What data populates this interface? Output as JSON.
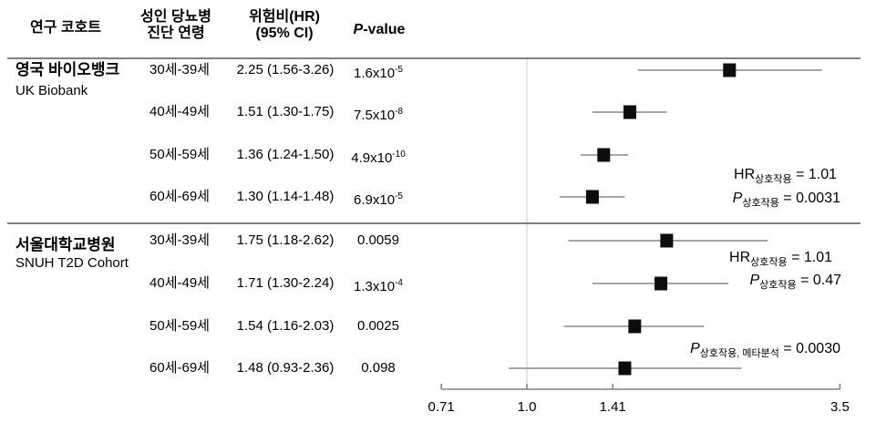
{
  "table": {
    "headers": {
      "cohort": "연구 코호트",
      "age_line1": "성인 당뇨병",
      "age_line2": "진단 연령",
      "hr_line1": "위험비(HR)",
      "hr_line2": "(95% CI)",
      "pvalue_italic": "P",
      "pvalue_rest": "-value"
    },
    "cohorts": [
      {
        "name_kr": "영국 바이오뱅크",
        "name_en": "UK Biobank"
      },
      {
        "name_kr": "서울대학교병원",
        "name_en": "SNUH T2D Cohort"
      }
    ],
    "rows": [
      {
        "age": "30세-39세",
        "hr_ci": "2.25 (1.56-3.26)",
        "p_base": "1.6x10",
        "p_sup": "-5"
      },
      {
        "age": "40세-49세",
        "hr_ci": "1.51 (1.30-1.75)",
        "p_base": "7.5x10",
        "p_sup": "-8"
      },
      {
        "age": "50세-59세",
        "hr_ci": "1.36 (1.24-1.50)",
        "p_base": "4.9x10",
        "p_sup": "-10"
      },
      {
        "age": "60세-69세",
        "hr_ci": "1.30 (1.14-1.48)",
        "p_base": "6.9x10",
        "p_sup": "-5"
      },
      {
        "age": "30세-39세",
        "hr_ci": "1.75 (1.18-2.62)",
        "p_base": "0.0059",
        "p_sup": ""
      },
      {
        "age": "40세-49세",
        "hr_ci": "1.71 (1.30-2.24)",
        "p_base": "1.3x10",
        "p_sup": "-4"
      },
      {
        "age": "50세-59세",
        "hr_ci": "1.54 (1.16-2.03)",
        "p_base": "0.0025",
        "p_sup": ""
      },
      {
        "age": "60세-69세",
        "hr_ci": "1.48 (0.93-2.36)",
        "p_base": "0.098",
        "p_sup": ""
      }
    ]
  },
  "chart_data": {
    "type": "forest",
    "title": "",
    "xscale": "log",
    "xlim": [
      0.71,
      3.5
    ],
    "xticks": [
      0.71,
      1.0,
      1.41,
      3.5
    ],
    "xtick_labels": [
      "0.71",
      "1.0",
      "1.41",
      "3.5"
    ],
    "reference_line": 1.0,
    "grid": false,
    "legend_position": "none",
    "series": [
      {
        "name": "UK Biobank",
        "points": [
          {
            "label": "30세-39세",
            "hr": 2.25,
            "ci_low": 1.56,
            "ci_high": 3.26
          },
          {
            "label": "40세-49세",
            "hr": 1.51,
            "ci_low": 1.3,
            "ci_high": 1.75
          },
          {
            "label": "50세-59세",
            "hr": 1.36,
            "ci_low": 1.24,
            "ci_high": 1.5
          },
          {
            "label": "60세-69세",
            "hr": 1.3,
            "ci_low": 1.14,
            "ci_high": 1.48
          }
        ]
      },
      {
        "name": "SNUH T2D Cohort",
        "points": [
          {
            "label": "30세-39세",
            "hr": 1.75,
            "ci_low": 1.18,
            "ci_high": 2.62
          },
          {
            "label": "40세-49세",
            "hr": 1.71,
            "ci_low": 1.3,
            "ci_high": 2.24
          },
          {
            "label": "50세-59세",
            "hr": 1.54,
            "ci_low": 1.16,
            "ci_high": 2.03
          },
          {
            "label": "60세-69세",
            "hr": 1.48,
            "ci_low": 0.93,
            "ci_high": 2.36
          }
        ]
      }
    ]
  },
  "annotations": [
    {
      "prefix": "HR",
      "italic_prefix": false,
      "subscript": "상호작용",
      "value": " = 1.01"
    },
    {
      "prefix": "P",
      "italic_prefix": true,
      "subscript": "상호작용",
      "value": " = 0.0031"
    },
    {
      "prefix": "HR",
      "italic_prefix": false,
      "subscript": "상호작용",
      "value": " = 1.01"
    },
    {
      "prefix": "P",
      "italic_prefix": true,
      "subscript": "상호작용",
      "value": " = 0.47"
    },
    {
      "prefix": "P",
      "italic_prefix": true,
      "subscript": "상호작용, 메타분석",
      "value": " = 0.0030"
    }
  ],
  "colors": {
    "marker": "#0d0d0d",
    "ci_line": "#a6a6a6",
    "axis": "#808080",
    "reference_line": "#d9d9d9",
    "separator": "#7f7f7f",
    "text": "#000000"
  }
}
